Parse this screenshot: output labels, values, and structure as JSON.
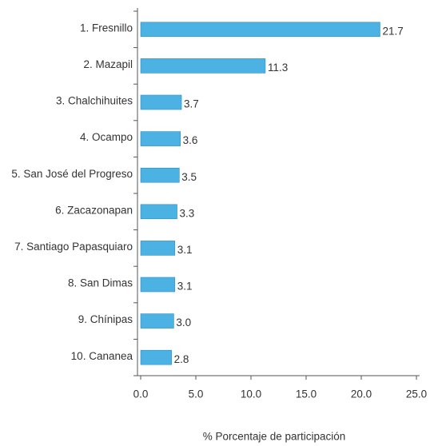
{
  "chart_data": {
    "type": "barh",
    "categories": [
      "1. Fresnillo",
      "2. Mazapil",
      "3. Chalchihuites",
      "4. Ocampo",
      "5. San José del Progreso",
      "6. Zacazonapan",
      "7. Santiago Papasquiaro",
      "8. San Dimas",
      "9. Chínipas",
      "10. Cananea"
    ],
    "values": [
      21.7,
      11.3,
      3.7,
      3.6,
      3.5,
      3.3,
      3.1,
      3.1,
      3.0,
      2.8
    ],
    "value_labels": [
      "21.7",
      "11.3",
      "3.7",
      "3.6",
      "3.5",
      "3.3",
      "3.1",
      "3.1",
      "3.0",
      "2.8"
    ],
    "color": "#4bb2e3",
    "xlim": [
      0,
      25
    ],
    "xticks": [
      {
        "value": 0,
        "label": "0.0"
      },
      {
        "value": 5,
        "label": "5.0"
      },
      {
        "value": 10,
        "label": "10.0"
      },
      {
        "value": 15,
        "label": "15.0"
      },
      {
        "value": 20,
        "label": "20.0"
      },
      {
        "value": 25,
        "label": "25.0"
      }
    ],
    "xlabel": "% Porcentaje de participación"
  }
}
